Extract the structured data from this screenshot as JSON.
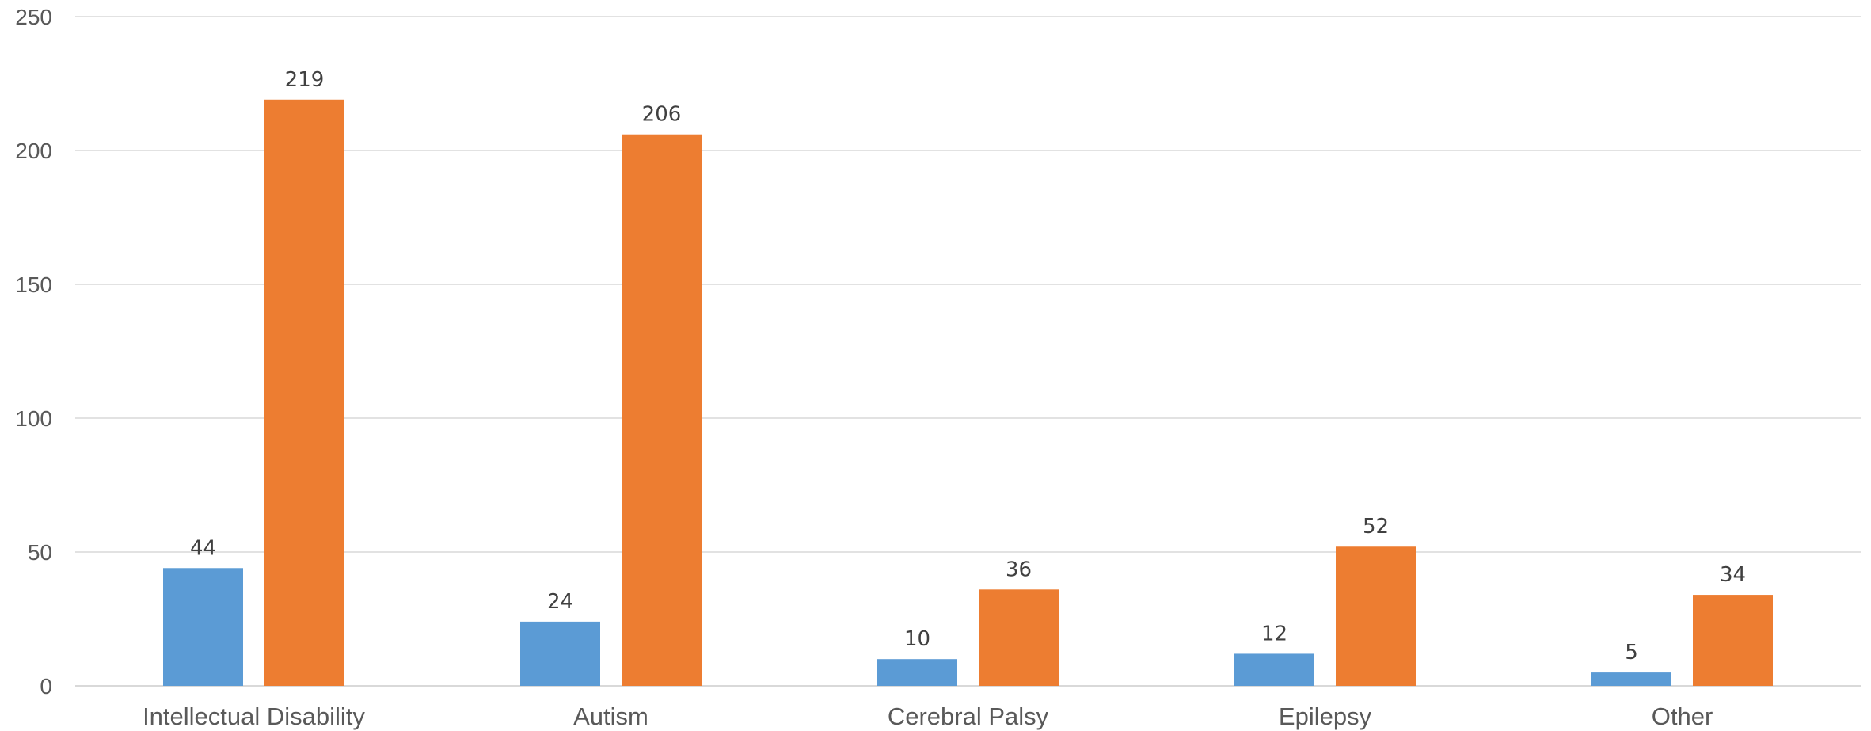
{
  "chart_data": {
    "type": "bar",
    "title": "",
    "xlabel": "",
    "ylabel": "",
    "categories": [
      "Intellectual Disability",
      "Autism",
      "Cerebral Palsy",
      "Epilepsy",
      "Other"
    ],
    "series": [
      {
        "color": "#5b9bd5",
        "values": [
          44,
          24,
          10,
          12,
          5
        ]
      },
      {
        "color": "#ed7d31",
        "values": [
          219,
          206,
          36,
          52,
          34
        ]
      }
    ],
    "ylim": [
      0,
      250
    ],
    "yticks": [
      0,
      50,
      100,
      150,
      200,
      250
    ],
    "ytick_labels": [
      "0",
      "50",
      "100",
      "150",
      "200",
      "250"
    ],
    "grid": true,
    "data_labels": true,
    "legend": "none"
  }
}
